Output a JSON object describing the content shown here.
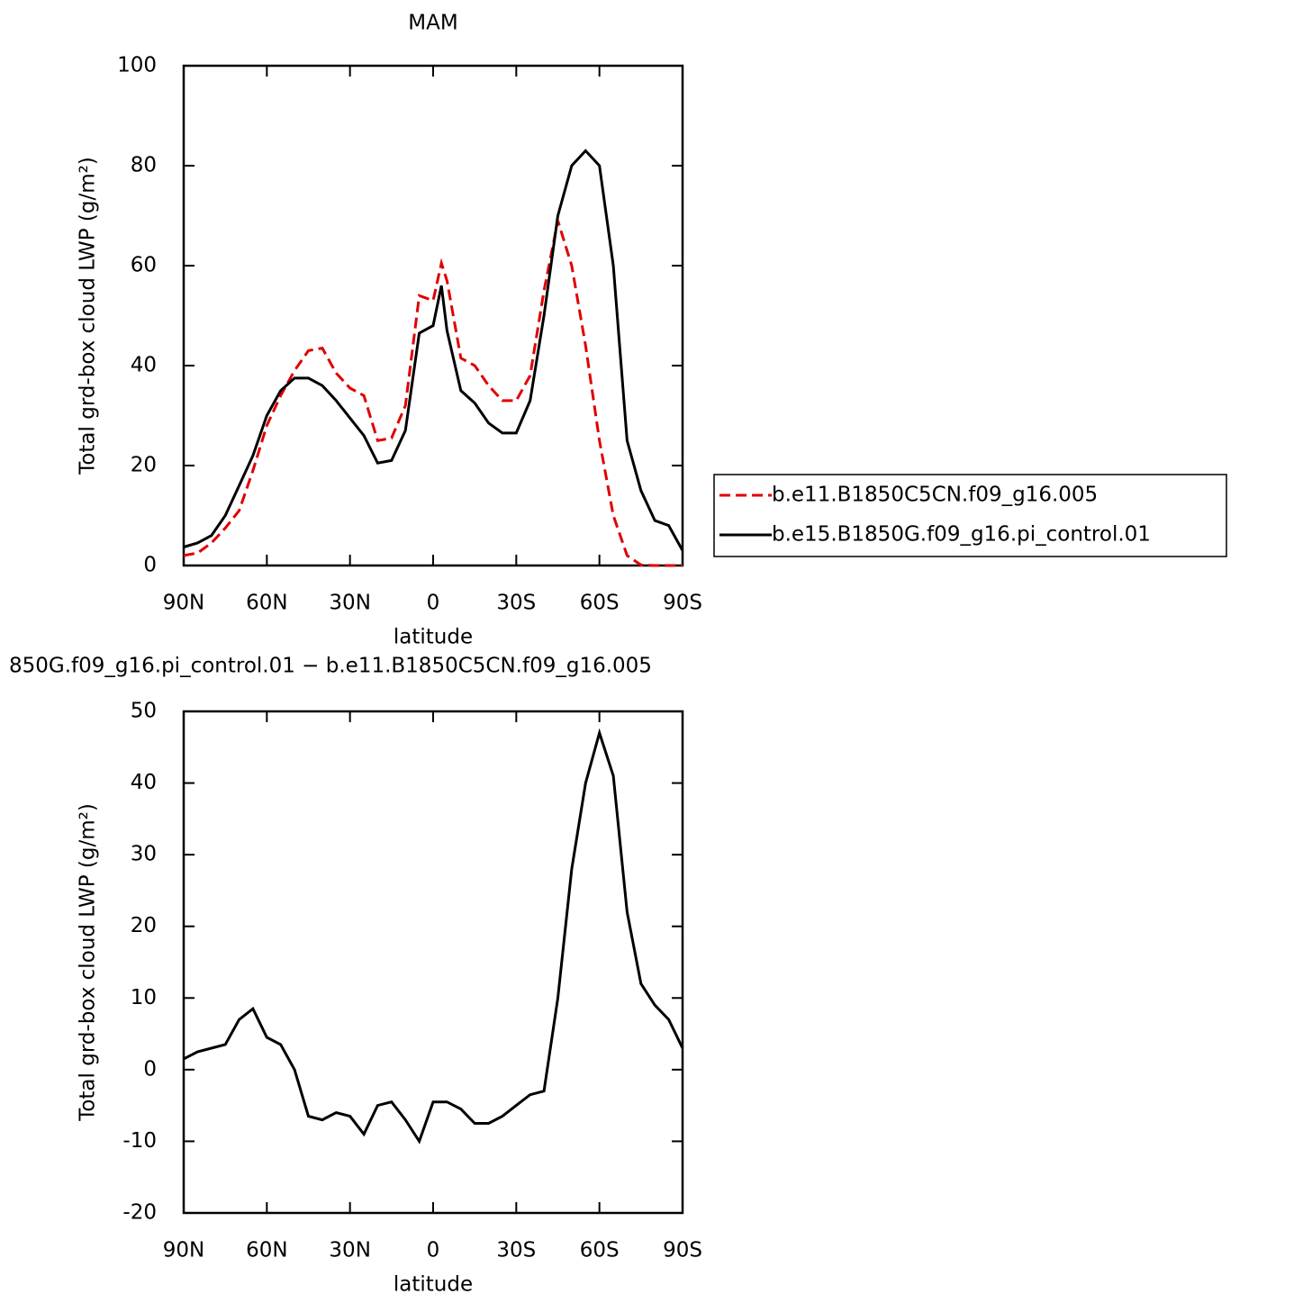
{
  "chart_data": [
    {
      "type": "line",
      "title": "MAM",
      "x_label": "latitude",
      "y_label": "Total grd-box cloud LWP (g/m²)",
      "x": [
        90,
        85,
        80,
        75,
        70,
        65,
        60,
        55,
        50,
        45,
        40,
        35,
        30,
        25,
        20,
        15,
        10,
        5,
        0,
        -3,
        -5,
        -10,
        -15,
        -20,
        -25,
        -30,
        -35,
        -40,
        -45,
        -50,
        -55,
        -60,
        -65,
        -70,
        -75,
        -80,
        -85,
        -90
      ],
      "xlim": [
        90,
        -90
      ],
      "xticks": [
        {
          "value": 90,
          "label": "90N"
        },
        {
          "value": 60,
          "label": "60N"
        },
        {
          "value": 30,
          "label": "30N"
        },
        0,
        {
          "value": -30,
          "label": "30S"
        },
        {
          "value": -60,
          "label": "60S"
        },
        {
          "value": -90,
          "label": "90S"
        }
      ],
      "ylim": [
        0,
        100
      ],
      "yticks": [
        0,
        20,
        40,
        60,
        80,
        100
      ],
      "legend": "right",
      "series": [
        {
          "name": "b.e11.B1850C5CN.f09_g16.005",
          "color": "#e00000",
          "linestyle": "dashed",
          "values": [
            2,
            2.5,
            4.5,
            7.5,
            11,
            19,
            28,
            34,
            39,
            43,
            43.5,
            38.5,
            35.5,
            34,
            25,
            25.5,
            32,
            54,
            53,
            60.5,
            57,
            41.5,
            40,
            36,
            33,
            33,
            38,
            55,
            69,
            60,
            44,
            25,
            10,
            2,
            0.1,
            0,
            0,
            0
          ]
        },
        {
          "name": "b.e15.B1850G.f09_g16.pi_control.01",
          "color": "#000000",
          "linestyle": "solid",
          "values": [
            3.7,
            4.5,
            6,
            10,
            16,
            22,
            30,
            35,
            37.5,
            37.5,
            36,
            33,
            29.5,
            26,
            20.5,
            21,
            27,
            46.5,
            48,
            56,
            47,
            35,
            32.5,
            28.5,
            26.5,
            26.5,
            33,
            50,
            70,
            80,
            83,
            80,
            60,
            25,
            15,
            9,
            8,
            3
          ]
        }
      ]
    },
    {
      "type": "line",
      "title": "850G.f09_g16.pi_control.01 − b.e11.B1850C5CN.f09_g16.005",
      "x_label": "latitude",
      "y_label": "Total grd-box cloud LWP (g/m²)",
      "x": [
        90,
        85,
        80,
        75,
        70,
        65,
        60,
        55,
        50,
        45,
        40,
        35,
        30,
        25,
        20,
        15,
        10,
        5,
        0,
        -3,
        -5,
        -10,
        -15,
        -20,
        -25,
        -30,
        -35,
        -40,
        -45,
        -50,
        -55,
        -60,
        -65,
        -70,
        -75,
        -80,
        -85,
        -90
      ],
      "xlim": [
        90,
        -90
      ],
      "xticks": [
        {
          "value": 90,
          "label": "90N"
        },
        {
          "value": 60,
          "label": "60N"
        },
        {
          "value": 30,
          "label": "30N"
        },
        0,
        {
          "value": -30,
          "label": "30S"
        },
        {
          "value": -60,
          "label": "60S"
        },
        {
          "value": -90,
          "label": "90S"
        }
      ],
      "ylim": [
        -20,
        50
      ],
      "yticks": [
        -20,
        -10,
        0,
        10,
        20,
        30,
        40,
        50
      ],
      "series": [
        {
          "color": "#000000",
          "linestyle": "solid",
          "values": [
            1.5,
            2.5,
            3,
            3.5,
            7,
            8.5,
            4.5,
            3.5,
            0,
            -6.5,
            -7,
            -6,
            -6.5,
            -9,
            -5,
            -4.5,
            -7,
            -10,
            -4.5,
            -4.5,
            -4.5,
            -5.5,
            -7.5,
            -7.5,
            -6.5,
            -5,
            -3.5,
            -3,
            10,
            28,
            40,
            47,
            41,
            22,
            12,
            9,
            7,
            3
          ]
        }
      ]
    }
  ]
}
